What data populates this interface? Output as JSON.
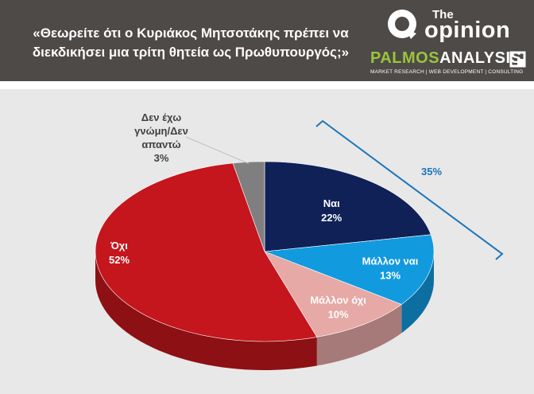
{
  "header": {
    "question": "«Θεωρείτε ότι ο Κυριάκος Μητσοτάκης πρέπει να διεκδικήσει μια τρίτη θητεία ως Πρωθυπουργός;»",
    "logo_the": "The",
    "logo_opinion": "opinion",
    "logo_palmos_brand_1": "PALMOS",
    "logo_palmos_brand_2": "ANALYSIS",
    "logo_palmos_tagline": "MARKET RESEARCH | WEB DEVELOPMENT | CONSULTING"
  },
  "colors": {
    "header_bg": "#4d4a47",
    "panel_bg": "#e8e8e8",
    "nai": "#0f2157",
    "mallon_nai": "#129adf",
    "mallon_oxi": "#e6a9a6",
    "oxi": "#c4161c",
    "dk": "#7f7f7f",
    "bracket": "#1b75bb"
  },
  "chart_data": {
    "type": "pie",
    "style": "3d",
    "slices": [
      {
        "name": "Ναι",
        "value": 22,
        "label": "22%",
        "color": "#0f2157"
      },
      {
        "name": "Μάλλον ναι",
        "value": 13,
        "label": "13%",
        "color": "#129adf"
      },
      {
        "name": "Μάλλον όχι",
        "value": 10,
        "label": "10%",
        "color": "#e6a9a6"
      },
      {
        "name": "Όχι",
        "value": 52,
        "label": "52%",
        "color": "#c4161c"
      },
      {
        "name": "Δεν έχω γνώμη/Δεν απαντώ",
        "value": 3,
        "label": "3%",
        "color": "#7f7f7f"
      }
    ],
    "dk_label_lines": [
      "Δεν έχω",
      "γνώμη/Δεν",
      "απαντώ"
    ],
    "annotation": {
      "label": "35%",
      "spans": [
        "Ναι",
        "Μάλλον ναι"
      ]
    }
  }
}
